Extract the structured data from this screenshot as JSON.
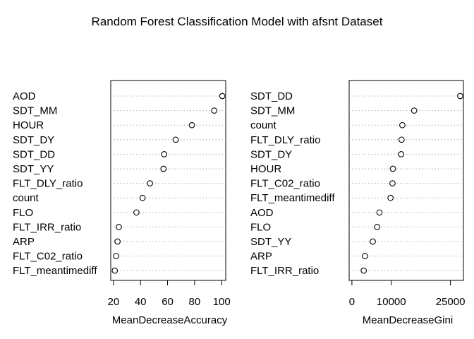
{
  "title": "Random Forest Classification Model with afsnt Dataset",
  "chart_data": [
    {
      "type": "scatter",
      "xlabel": "MeanDecreaseAccuracy",
      "xlim": [
        18,
        103
      ],
      "xticks": [
        20,
        40,
        60,
        80,
        100
      ],
      "xtick_labels": [
        "20",
        "40",
        "60",
        "80",
        "100"
      ],
      "categories": [
        "AOD",
        "SDT_MM",
        "HOUR",
        "SDT_DY",
        "SDT_DD",
        "SDT_YY",
        "FLT_DLY_ratio",
        "count",
        "FLO",
        "FLT_IRR_ratio",
        "ARP",
        "FLT_C02_ratio",
        "FLT_meantimediff"
      ],
      "values": [
        100.5,
        94.5,
        78,
        66,
        57.5,
        57,
        47,
        41.5,
        37,
        24,
        23,
        22,
        21
      ]
    },
    {
      "type": "scatter",
      "xlabel": "MeanDecreaseGini",
      "xlim": [
        -700,
        28300
      ],
      "xticks": [
        0,
        10000,
        25000
      ],
      "xtick_labels": [
        "0",
        "10000",
        "25000"
      ],
      "categories": [
        "SDT_DD",
        "SDT_MM",
        "count",
        "FLT_DLY_ratio",
        "SDT_DY",
        "HOUR",
        "FLT_C02_ratio",
        "FLT_meantimediff",
        "AOD",
        "FLO",
        "SDT_YY",
        "ARP",
        "FLT_IRR_ratio"
      ],
      "values": [
        27500,
        15800,
        12800,
        12600,
        12500,
        10400,
        10300,
        9800,
        7000,
        6400,
        5300,
        3300,
        3000
      ]
    }
  ]
}
